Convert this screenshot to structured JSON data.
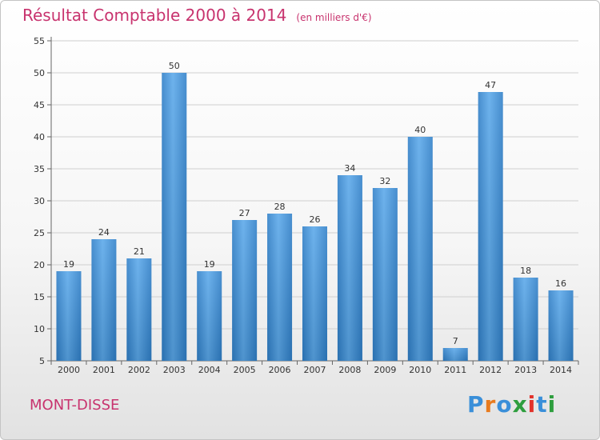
{
  "header": {
    "title": "Résultat Comptable 2000 à 2014",
    "unit": "(en milliers d'€)"
  },
  "footer": {
    "location": "MONT-DISSE",
    "brand": "Proxiti"
  },
  "colors": {
    "bar": "#3a8fd9",
    "title": "#c8336e",
    "logo": [
      "#3a8fd9",
      "#e87b1e",
      "#3a8fd9",
      "#2e9e3e",
      "#e2322b",
      "#3a8fd9",
      "#2e9e3e"
    ]
  },
  "chart_data": {
    "type": "bar",
    "title": "Résultat Comptable 2000 à 2014",
    "subtitle": "(en milliers d'€)",
    "categories": [
      "2000",
      "2001",
      "2002",
      "2003",
      "2004",
      "2005",
      "2006",
      "2007",
      "2008",
      "2009",
      "2010",
      "2011",
      "2012",
      "2013",
      "2014"
    ],
    "values": [
      19,
      24,
      21,
      50,
      19,
      27,
      28,
      26,
      34,
      32,
      40,
      7,
      47,
      18,
      16
    ],
    "xlabel": "",
    "ylabel": "",
    "ylim": [
      5,
      55
    ],
    "yticks": [
      5,
      10,
      15,
      20,
      25,
      30,
      35,
      40,
      45,
      50,
      55
    ],
    "grid": true,
    "legend": "none"
  }
}
